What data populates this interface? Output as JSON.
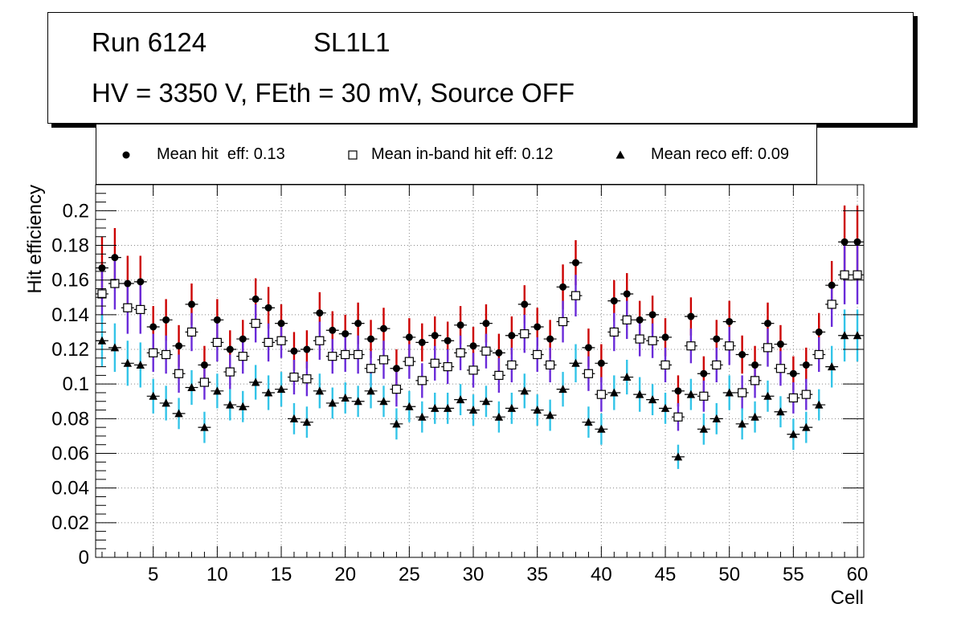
{
  "title_box": {
    "run": "Run 6124",
    "layer": "SL1L1",
    "conditions": "HV = 3350 V, FEth = 30 mV, Source OFF"
  },
  "legend": {
    "hit": "Mean hit  eff: 0.13",
    "inband": "Mean in-band hit eff: 0.12",
    "reco": "Mean reco eff: 0.09"
  },
  "colors": {
    "hit_err": "#cc0000",
    "inband_err": "#6a2bd9",
    "reco_err": "#33c4e8",
    "grid": "#888888"
  },
  "chart_data": {
    "type": "scatter",
    "xlabel": "Cell",
    "ylabel": "Hit efficiency",
    "xlim": [
      0.5,
      60.5
    ],
    "ylim": [
      0,
      0.215
    ],
    "xticks": [
      5,
      10,
      15,
      20,
      25,
      30,
      35,
      40,
      45,
      50,
      55,
      60
    ],
    "yticks": [
      0,
      0.02,
      0.04,
      0.06,
      0.08,
      0.1,
      0.12,
      0.14,
      0.16,
      0.18,
      0.2
    ],
    "ytick_labels": [
      "0",
      "0.02",
      "0.04",
      "0.06",
      "0.08",
      "0.1",
      "0.12",
      "0.14",
      "0.16",
      "0.18",
      "0.2"
    ],
    "grid": true,
    "x": [
      1,
      2,
      3,
      4,
      5,
      6,
      7,
      8,
      9,
      10,
      11,
      12,
      13,
      14,
      15,
      16,
      17,
      18,
      19,
      20,
      21,
      22,
      23,
      24,
      25,
      26,
      27,
      28,
      29,
      30,
      31,
      32,
      33,
      34,
      35,
      36,
      37,
      38,
      39,
      40,
      41,
      42,
      43,
      44,
      45,
      46,
      47,
      48,
      49,
      50,
      51,
      52,
      53,
      54,
      55,
      56,
      57,
      58,
      59,
      60
    ],
    "series": [
      {
        "name": "Mean hit  eff: 0.13",
        "marker": "circle",
        "values": [
          0.167,
          0.173,
          0.158,
          0.159,
          0.133,
          0.137,
          0.122,
          0.146,
          0.111,
          0.137,
          0.12,
          0.126,
          0.149,
          0.144,
          0.135,
          0.119,
          0.12,
          0.141,
          0.131,
          0.129,
          0.135,
          0.126,
          0.132,
          0.109,
          0.127,
          0.124,
          0.128,
          0.125,
          0.134,
          0.122,
          0.135,
          0.118,
          0.128,
          0.146,
          0.133,
          0.126,
          0.156,
          0.17,
          0.121,
          0.112,
          0.148,
          0.152,
          0.137,
          0.14,
          0.127,
          0.096,
          0.139,
          0.106,
          0.126,
          0.136,
          0.117,
          0.111,
          0.135,
          0.123,
          0.106,
          0.111,
          0.13,
          0.157,
          0.182,
          0.182
        ],
        "errors": [
          0.018,
          0.017,
          0.016,
          0.015,
          0.012,
          0.012,
          0.012,
          0.012,
          0.011,
          0.012,
          0.011,
          0.011,
          0.012,
          0.012,
          0.011,
          0.011,
          0.011,
          0.012,
          0.011,
          0.011,
          0.012,
          0.011,
          0.012,
          0.011,
          0.011,
          0.011,
          0.011,
          0.011,
          0.011,
          0.011,
          0.011,
          0.011,
          0.011,
          0.011,
          0.011,
          0.011,
          0.013,
          0.013,
          0.011,
          0.011,
          0.012,
          0.012,
          0.011,
          0.011,
          0.011,
          0.009,
          0.011,
          0.01,
          0.011,
          0.012,
          0.011,
          0.011,
          0.012,
          0.011,
          0.01,
          0.01,
          0.011,
          0.014,
          0.021,
          0.021
        ]
      },
      {
        "name": "Mean in-band hit eff: 0.12",
        "marker": "square",
        "values": [
          0.152,
          0.158,
          0.144,
          0.143,
          0.118,
          0.117,
          0.106,
          0.13,
          0.101,
          0.124,
          0.107,
          0.116,
          0.135,
          0.124,
          0.125,
          0.104,
          0.103,
          0.125,
          0.116,
          0.117,
          0.117,
          0.109,
          0.114,
          0.097,
          0.113,
          0.102,
          0.112,
          0.11,
          0.118,
          0.108,
          0.119,
          0.105,
          0.111,
          0.129,
          0.117,
          0.111,
          0.136,
          0.151,
          0.106,
          0.094,
          0.13,
          0.137,
          0.126,
          0.125,
          0.111,
          0.081,
          0.122,
          0.093,
          0.111,
          0.122,
          0.095,
          0.102,
          0.121,
          0.109,
          0.092,
          0.094,
          0.117,
          0.146,
          0.163,
          0.163
        ],
        "errors": [
          0.016,
          0.015,
          0.015,
          0.014,
          0.011,
          0.011,
          0.011,
          0.011,
          0.01,
          0.011,
          0.01,
          0.01,
          0.011,
          0.011,
          0.01,
          0.01,
          0.01,
          0.011,
          0.01,
          0.01,
          0.011,
          0.01,
          0.011,
          0.01,
          0.01,
          0.01,
          0.01,
          0.01,
          0.01,
          0.01,
          0.01,
          0.01,
          0.01,
          0.011,
          0.01,
          0.01,
          0.012,
          0.012,
          0.01,
          0.01,
          0.011,
          0.011,
          0.01,
          0.01,
          0.01,
          0.008,
          0.01,
          0.009,
          0.01,
          0.011,
          0.01,
          0.01,
          0.011,
          0.01,
          0.009,
          0.009,
          0.01,
          0.013,
          0.017,
          0.017
        ]
      },
      {
        "name": "Mean reco eff: 0.09",
        "marker": "triangle",
        "values": [
          0.125,
          0.121,
          0.112,
          0.111,
          0.093,
          0.089,
          0.083,
          0.098,
          0.075,
          0.096,
          0.088,
          0.087,
          0.101,
          0.095,
          0.097,
          0.08,
          0.078,
          0.096,
          0.089,
          0.092,
          0.09,
          0.096,
          0.09,
          0.077,
          0.087,
          0.081,
          0.086,
          0.086,
          0.091,
          0.085,
          0.09,
          0.081,
          0.086,
          0.096,
          0.085,
          0.082,
          0.097,
          0.112,
          0.078,
          0.074,
          0.095,
          0.104,
          0.094,
          0.091,
          0.086,
          0.058,
          0.094,
          0.074,
          0.08,
          0.095,
          0.077,
          0.081,
          0.093,
          0.084,
          0.071,
          0.075,
          0.088,
          0.11,
          0.128,
          0.128
        ],
        "errors": [
          0.015,
          0.014,
          0.013,
          0.013,
          0.01,
          0.01,
          0.009,
          0.01,
          0.009,
          0.01,
          0.009,
          0.009,
          0.01,
          0.01,
          0.01,
          0.009,
          0.009,
          0.01,
          0.009,
          0.009,
          0.009,
          0.01,
          0.009,
          0.009,
          0.009,
          0.009,
          0.009,
          0.009,
          0.009,
          0.009,
          0.009,
          0.009,
          0.009,
          0.01,
          0.009,
          0.009,
          0.01,
          0.011,
          0.009,
          0.009,
          0.01,
          0.01,
          0.01,
          0.009,
          0.009,
          0.007,
          0.009,
          0.009,
          0.009,
          0.01,
          0.009,
          0.009,
          0.009,
          0.009,
          0.009,
          0.009,
          0.009,
          0.012,
          0.015,
          0.015
        ]
      }
    ]
  }
}
